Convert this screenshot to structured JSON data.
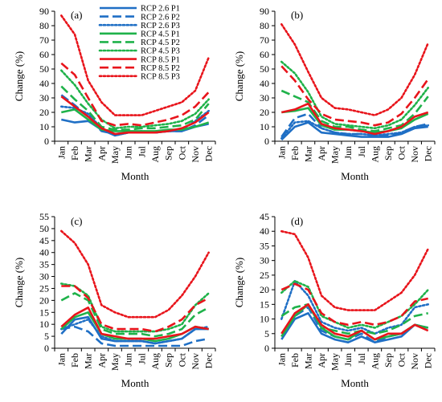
{
  "colors": {
    "blue": "#1f6fc5",
    "green": "#1fb24a",
    "red": "#e8141b",
    "axis": "#000000"
  },
  "legend": [
    {
      "name": "RCP 2.6 P1",
      "color": "blue",
      "dash": "solid"
    },
    {
      "name": "RCP 2.6 P2",
      "color": "blue",
      "dash": "dash"
    },
    {
      "name": "RCP 2.6 P3",
      "color": "blue",
      "dash": "dot"
    },
    {
      "name": "RCP 4.5 P1",
      "color": "green",
      "dash": "solid"
    },
    {
      "name": "RCP 4.5 P2",
      "color": "green",
      "dash": "dash"
    },
    {
      "name": "RCP 4.5 P3",
      "color": "green",
      "dash": "dot"
    },
    {
      "name": "RCP 8.5 P1",
      "color": "red",
      "dash": "solid"
    },
    {
      "name": "RCP 8.5 P2",
      "color": "red",
      "dash": "dash"
    },
    {
      "name": "RCP 8.5 P3",
      "color": "red",
      "dash": "dot"
    }
  ],
  "chart_data": [
    {
      "type": "line",
      "label": "(a)",
      "xlabel": "Month",
      "ylabel": "Change (%)",
      "ylim": [
        0,
        90
      ],
      "yticks": [
        0,
        10,
        20,
        30,
        40,
        50,
        60,
        70,
        80,
        90
      ],
      "categories": [
        "Jan",
        "Feb",
        "Mar",
        "Apr",
        "May",
        "Jun",
        "Jul",
        "Aug",
        "Sep",
        "Oct",
        "Nov",
        "Dec"
      ],
      "series": [
        {
          "name": "RCP 2.6 P1",
          "values": [
            15,
            13,
            14,
            8,
            4,
            6,
            6,
            6,
            7,
            7,
            10,
            12
          ]
        },
        {
          "name": "RCP 2.6 P2",
          "values": [
            32,
            25,
            17,
            7,
            5,
            6,
            6,
            6,
            7,
            7,
            11,
            18
          ]
        },
        {
          "name": "RCP 2.6 P3",
          "values": [
            24,
            23,
            19,
            9,
            4,
            6,
            7,
            6,
            7,
            8,
            14,
            21
          ]
        },
        {
          "name": "RCP 4.5 P1",
          "values": [
            20,
            22,
            15,
            8,
            7,
            7,
            7,
            7,
            8,
            8,
            10,
            13
          ]
        },
        {
          "name": "RCP 4.5 P2",
          "values": [
            38,
            29,
            21,
            10,
            8,
            8,
            9,
            9,
            10,
            11,
            15,
            26
          ]
        },
        {
          "name": "RCP 4.5 P3",
          "values": [
            49,
            39,
            26,
            15,
            9,
            10,
            10,
            11,
            12,
            14,
            19,
            29
          ]
        },
        {
          "name": "RCP 8.5 P1",
          "values": [
            31,
            24,
            17,
            9,
            5,
            6,
            6,
            6,
            7,
            9,
            13,
            20
          ]
        },
        {
          "name": "RCP 8.5 P2",
          "values": [
            54,
            46,
            30,
            14,
            11,
            12,
            11,
            13,
            15,
            18,
            24,
            34
          ]
        },
        {
          "name": "RCP 8.5 P3",
          "values": [
            87,
            74,
            42,
            27,
            18,
            18,
            18,
            21,
            24,
            27,
            35,
            58
          ]
        }
      ]
    },
    {
      "type": "line",
      "label": "(b)",
      "xlabel": "Month",
      "ylabel": "Change (%)",
      "ylim": [
        0,
        90
      ],
      "yticks": [
        0,
        10,
        20,
        30,
        40,
        50,
        60,
        70,
        80,
        90
      ],
      "categories": [
        "Jan",
        "Feb",
        "Mar",
        "Apr",
        "May",
        "Jun",
        "Jul",
        "Aug",
        "Sep",
        "Oct",
        "Nov",
        "Dec"
      ],
      "series": [
        {
          "name": "RCP 2.6 P1",
          "values": [
            1,
            10,
            13,
            6,
            5,
            4,
            3,
            3,
            3,
            5,
            9,
            10
          ]
        },
        {
          "name": "RCP 2.6 P2",
          "values": [
            3,
            16,
            19,
            9,
            6,
            5,
            5,
            4,
            4,
            6,
            10,
            12
          ]
        },
        {
          "name": "RCP 2.6 P3",
          "values": [
            2,
            13,
            14,
            9,
            6,
            5,
            5,
            4,
            5,
            6,
            10,
            11
          ]
        },
        {
          "name": "RCP 4.5 P1",
          "values": [
            20,
            21,
            23,
            11,
            8,
            8,
            7,
            6,
            7,
            9,
            15,
            19
          ]
        },
        {
          "name": "RCP 4.5 P2",
          "values": [
            35,
            31,
            27,
            14,
            10,
            10,
            8,
            7,
            9,
            11,
            19,
            31
          ]
        },
        {
          "name": "RCP 4.5 P3",
          "values": [
            55,
            47,
            34,
            17,
            12,
            11,
            10,
            9,
            11,
            15,
            25,
            37
          ]
        },
        {
          "name": "RCP 8.5 P1",
          "values": [
            20,
            22,
            26,
            12,
            9,
            8,
            7,
            5,
            7,
            10,
            17,
            20
          ]
        },
        {
          "name": "RCP 8.5 P2",
          "values": [
            52,
            42,
            29,
            19,
            15,
            14,
            13,
            11,
            13,
            19,
            30,
            43
          ]
        },
        {
          "name": "RCP 8.5 P3",
          "values": [
            81,
            67,
            48,
            30,
            23,
            22,
            20,
            18,
            22,
            30,
            46,
            68
          ]
        }
      ]
    },
    {
      "type": "line",
      "label": "(c)",
      "xlabel": "Month",
      "ylabel": "Change (%)",
      "ylim": [
        0,
        55
      ],
      "yticks": [
        0,
        5,
        10,
        15,
        20,
        25,
        30,
        35,
        40,
        45,
        50,
        55
      ],
      "categories": [
        "Jan",
        "Feb",
        "Mar",
        "Apr",
        "May",
        "Jun",
        "Jul",
        "Aug",
        "Sep",
        "Oct",
        "Nov",
        "Dec"
      ],
      "series": [
        {
          "name": "RCP 2.6 P1",
          "values": [
            6,
            12,
            13,
            4,
            3,
            3,
            3,
            2,
            3,
            4,
            8,
            8
          ]
        },
        {
          "name": "RCP 2.6 P2",
          "values": [
            8,
            9,
            7,
            2,
            1,
            1,
            1,
            1,
            1,
            1,
            3,
            4
          ]
        },
        {
          "name": "RCP 2.6 P3",
          "values": [
            8,
            10,
            12,
            5,
            3,
            3,
            3,
            2,
            3,
            4,
            8,
            9
          ]
        },
        {
          "name": "RCP 4.5 P1",
          "values": [
            8,
            13,
            15,
            6,
            4,
            4,
            4,
            3,
            4,
            6,
            9,
            8
          ]
        },
        {
          "name": "RCP 4.5 P2",
          "values": [
            20,
            23,
            20,
            8,
            6,
            6,
            6,
            5,
            6,
            8,
            14,
            17
          ]
        },
        {
          "name": "RCP 4.5 P3",
          "values": [
            27,
            26,
            22,
            9,
            7,
            7,
            7,
            7,
            8,
            10,
            18,
            23
          ]
        },
        {
          "name": "RCP 8.5 P1",
          "values": [
            9,
            14,
            17,
            6,
            5,
            4,
            4,
            4,
            5,
            6,
            9,
            8
          ]
        },
        {
          "name": "RCP 8.5 P2",
          "values": [
            26,
            26,
            21,
            10,
            8,
            8,
            8,
            7,
            9,
            12,
            18,
            21
          ]
        },
        {
          "name": "RCP 8.5 P3",
          "values": [
            49,
            44,
            35,
            18,
            15,
            13,
            13,
            13,
            16,
            22,
            30,
            40
          ]
        }
      ]
    },
    {
      "type": "line",
      "label": "(d)",
      "xlabel": "Month",
      "ylabel": "Change (%)",
      "ylim": [
        0,
        45
      ],
      "yticks": [
        0,
        5,
        10,
        15,
        20,
        25,
        30,
        35,
        40,
        45
      ],
      "categories": [
        "Jan",
        "Feb",
        "Mar",
        "Apr",
        "May",
        "Jun",
        "Jul",
        "Aug",
        "Sep",
        "Oct",
        "Nov",
        "Dec"
      ],
      "series": [
        {
          "name": "RCP 2.6 P1",
          "values": [
            3,
            10,
            12,
            5,
            3,
            2,
            4,
            2,
            3,
            4,
            8,
            7
          ]
        },
        {
          "name": "RCP 2.6 P2",
          "values": [
            4,
            11,
            14,
            6,
            4,
            3,
            5,
            2,
            4,
            5,
            8,
            7
          ]
        },
        {
          "name": "RCP 2.6 P3",
          "values": [
            10,
            23,
            18,
            9,
            7,
            6,
            7,
            5,
            7,
            8,
            14,
            15
          ]
        },
        {
          "name": "RCP 4.5 P1",
          "values": [
            4,
            11,
            15,
            7,
            4,
            3,
            6,
            3,
            4,
            5,
            8,
            7
          ]
        },
        {
          "name": "RCP 4.5 P2",
          "values": [
            11,
            14,
            15,
            7,
            6,
            5,
            6,
            5,
            6,
            8,
            11,
            12
          ]
        },
        {
          "name": "RCP 4.5 P3",
          "values": [
            19,
            23,
            21,
            11,
            9,
            7,
            8,
            7,
            9,
            11,
            15,
            20
          ]
        },
        {
          "name": "RCP 8.5 P1",
          "values": [
            5,
            12,
            15,
            8,
            5,
            4,
            6,
            3,
            5,
            5,
            8,
            6
          ]
        },
        {
          "name": "RCP 8.5 P2",
          "values": [
            20,
            22,
            20,
            12,
            9,
            8,
            9,
            8,
            9,
            11,
            16,
            17
          ]
        },
        {
          "name": "RCP 8.5 P3",
          "values": [
            40,
            39,
            31,
            18,
            14,
            13,
            13,
            13,
            16,
            19,
            25,
            34
          ]
        }
      ]
    }
  ]
}
